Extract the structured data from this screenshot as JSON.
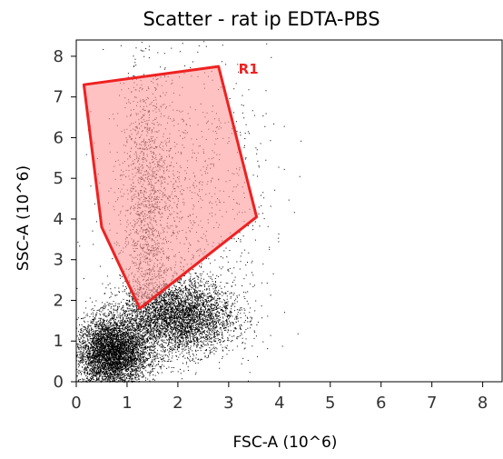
{
  "chart_data": {
    "type": "scatter",
    "title": "Scatter - rat  ip EDTA-PBS",
    "xlabel": "FSC-A (10^6)",
    "ylabel": "SSC-A (10^6)",
    "xlim": [
      0,
      8.4
    ],
    "ylim": [
      0,
      8.4
    ],
    "xticks": [
      "0",
      "1",
      "2",
      "3",
      "4",
      "5",
      "6",
      "7",
      "8"
    ],
    "yticks": [
      "0",
      "1",
      "2",
      "3",
      "4",
      "5",
      "6",
      "7",
      "8"
    ],
    "grid": false,
    "point_color": "#000000",
    "populations": [
      {
        "center": [
          0.7,
          0.7
        ],
        "spread": [
          0.35,
          0.45
        ],
        "count": 5200
      },
      {
        "center": [
          2.0,
          1.6
        ],
        "spread": [
          0.55,
          0.45
        ],
        "count": 4200
      },
      {
        "center": [
          1.4,
          4.2
        ],
        "spread": [
          0.25,
          1.9
        ],
        "count": 1500
      },
      {
        "center": [
          2.2,
          4.5
        ],
        "spread": [
          0.8,
          1.6
        ],
        "count": 900
      }
    ],
    "gate": {
      "name": "R1",
      "color": "#ee2222",
      "fill": "#ff9999",
      "vertices": [
        [
          0.15,
          7.3
        ],
        [
          2.8,
          7.75
        ],
        [
          3.55,
          4.05
        ],
        [
          1.25,
          1.8
        ],
        [
          0.5,
          3.8
        ]
      ]
    }
  }
}
